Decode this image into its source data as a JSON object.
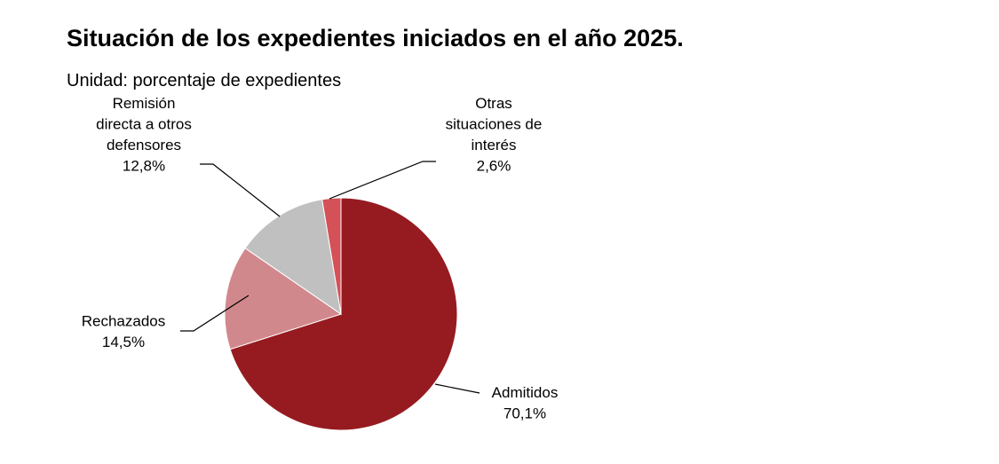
{
  "title": "Situación de los expedientes iniciados en el año 2025.",
  "subtitle": "Unidad: porcentaje de expedientes",
  "chart_data": {
    "type": "pie",
    "title": "Situación de los expedientes iniciados en el año 2025.",
    "subtitle": "Unidad: porcentaje de expedientes",
    "slices": [
      {
        "label": [
          "Admitidos"
        ],
        "value": 70.1,
        "value_text": "70,1%",
        "color": "#961b20"
      },
      {
        "label": [
          "Rechazados"
        ],
        "value": 14.5,
        "value_text": "14,5%",
        "color": "#d1888c"
      },
      {
        "label": [
          "Remisión",
          "directa a otros",
          "defensores"
        ],
        "value": 12.8,
        "value_text": "12,8%",
        "color": "#c0c0c0"
      },
      {
        "label": [
          "Otras",
          "situaciones de",
          "interés"
        ],
        "value": 2.6,
        "value_text": "2,6%",
        "color": "#d35157"
      }
    ]
  }
}
